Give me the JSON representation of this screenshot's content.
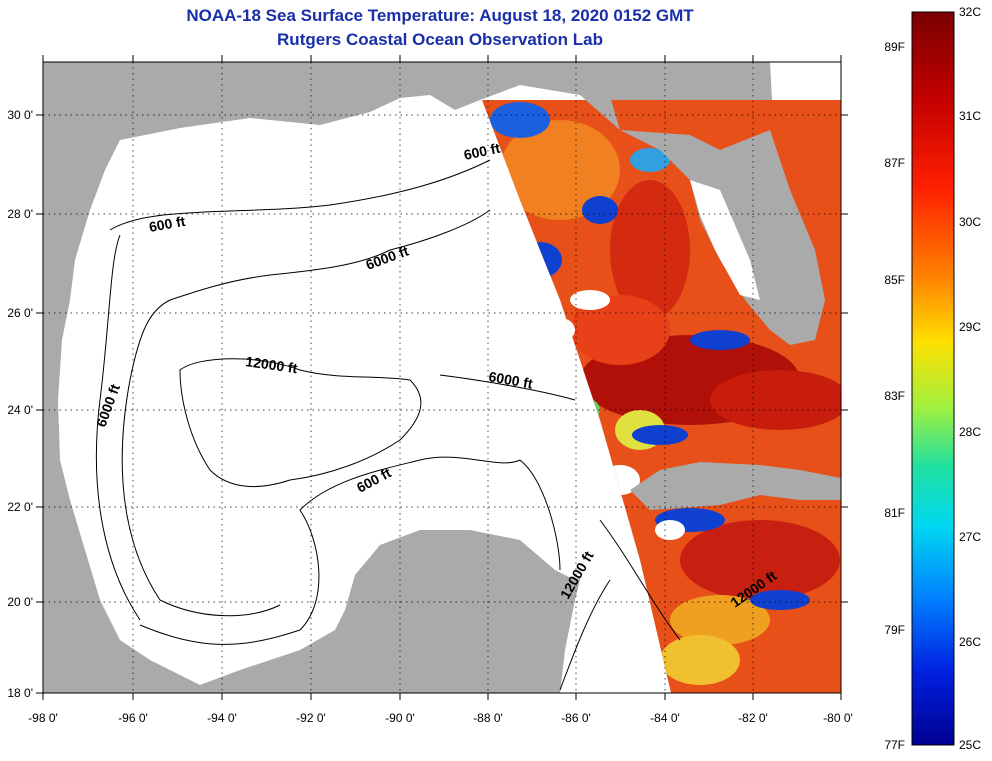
{
  "title": "NOAA-18 Sea Surface Temperature:  August 18, 2020 0152 GMT",
  "subtitle": "Rutgers Coastal Ocean Observation Lab",
  "axes": {
    "lon_ticks": [
      "-98 0'",
      "-96 0'",
      "-94 0'",
      "-92 0'",
      "-90 0'",
      "-88 0'",
      "-86 0'",
      "-84 0'",
      "-82 0'",
      "-80 0'"
    ],
    "lat_ticks": [
      "30 0'",
      "28 0'",
      "26 0'",
      "24 0'",
      "22 0'",
      "20 0'",
      "18 0'"
    ]
  },
  "contour_labels": [
    "600 ft",
    "6000 ft",
    "12000 ft",
    "6000 ft",
    "6000 ft",
    "600 ft",
    "600 ft",
    "12000 ft",
    "12000 ft"
  ],
  "colorbar": {
    "fahrenheit": [
      "89F",
      "87F",
      "85F",
      "83F",
      "81F",
      "79F",
      "77F"
    ],
    "celsius": [
      "32C",
      "31C",
      "30C",
      "29C",
      "28C",
      "27C",
      "26C",
      "25C"
    ]
  },
  "colors": {
    "land": "#aaaaaa",
    "ocean": "#ffffff",
    "title": "#1a2fa8",
    "sst_hot": "#d42a10",
    "sst_warm": "#f07a10",
    "sst_cool": "#1040d0"
  }
}
